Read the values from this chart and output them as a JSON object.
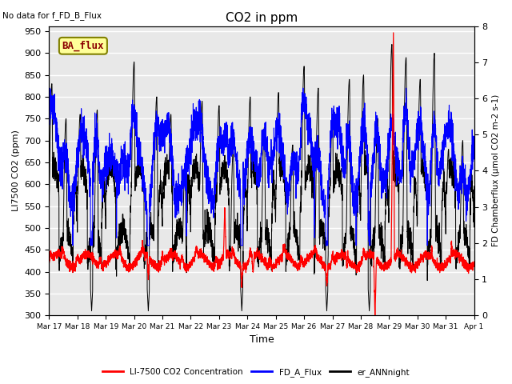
{
  "title": "CO2 in ppm",
  "top_left_text": "No data for f_FD_B_Flux",
  "ba_flux_label": "BA_flux",
  "ylabel_left": "LI7500 CO2 (ppm)",
  "ylabel_right": "FD Chamberflux (μmol CO2 m-2 s-1)",
  "xlabel": "Time",
  "ylim_left": [
    300,
    962
  ],
  "ylim_right": [
    0.0,
    8.0
  ],
  "xtick_labels": [
    "Mar 17",
    "Mar 18",
    "Mar 19",
    "Mar 20",
    "Mar 21",
    "Mar 22",
    "Mar 23",
    "Mar 24",
    "Mar 25",
    "Mar 26",
    "Mar 27",
    "Mar 28",
    "Mar 29",
    "Mar 30",
    "Mar 31",
    "Apr 1"
  ],
  "legend_labels": [
    "LI-7500 CO2 Concentration",
    "FD_A_Flux",
    "er_ANNnight"
  ],
  "legend_colors": [
    "#ff0000",
    "#0000ff",
    "#000000"
  ],
  "background_color": "#ffffff",
  "plot_bg_color": "#e8e8e8",
  "grid_color": "#ffffff",
  "yticks_left": [
    300,
    350,
    400,
    450,
    500,
    550,
    600,
    650,
    700,
    750,
    800,
    850,
    900,
    950
  ],
  "yticks_right": [
    0.0,
    1.0,
    2.0,
    3.0,
    4.0,
    5.0,
    6.0,
    7.0,
    8.0
  ],
  "n_points": 4320,
  "ba_flux_box_facecolor": "#ffff99",
  "ba_flux_box_edgecolor": "#808000",
  "ba_flux_text_color": "#8b0000"
}
